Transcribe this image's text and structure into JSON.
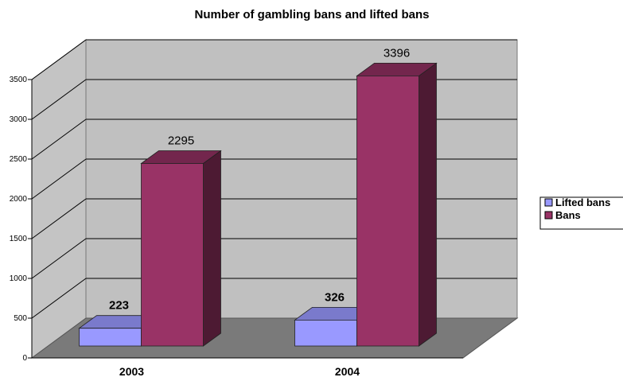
{
  "chart_data": {
    "type": "bar",
    "title": "Number of gambling bans and lifted bans",
    "categories": [
      "2003",
      "2004"
    ],
    "series": [
      {
        "name": "Lifted bans",
        "values": [
          223,
          326
        ],
        "color": "#9999ff"
      },
      {
        "name": "Bans",
        "values": [
          2295,
          3396
        ],
        "color": "#993366"
      }
    ],
    "ylim": [
      0,
      3500
    ],
    "yticks": [
      "0",
      "500",
      "1000",
      "1500",
      "2000",
      "2500",
      "3000",
      "3500"
    ],
    "grid": true,
    "legend": "right",
    "style": "3d-clustered-column"
  }
}
